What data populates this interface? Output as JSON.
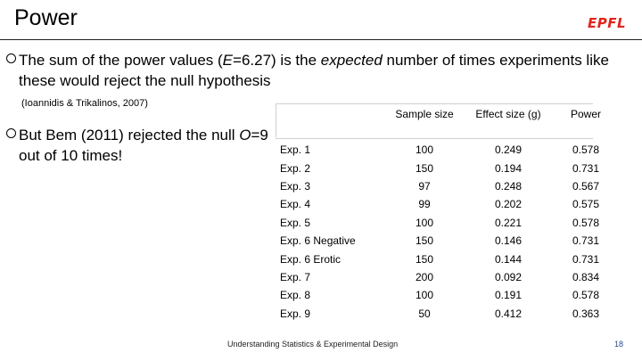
{
  "header": {
    "title": "Power",
    "logo_text": "EPFL",
    "logo_color": "#e2231a"
  },
  "bullet1": {
    "pre": "The sum of the power values (",
    "italic1": "E",
    "mid1": "=6.27) is the ",
    "italic2": "expected",
    "post": " number of times experiments like these would reject the null hypothesis"
  },
  "citation": "(Ioannidis & Trikalinos, 2007)",
  "bullet2": {
    "pre": "But Bem (2011) rejected the null ",
    "italic": "O",
    "post": "=9 out of 10 times!"
  },
  "table": {
    "headers": [
      "",
      "Sample size",
      "Effect size (g)",
      "Power"
    ],
    "rows": [
      [
        "Exp. 1",
        "100",
        "0.249",
        "0.578"
      ],
      [
        "Exp. 2",
        "150",
        "0.194",
        "0.731"
      ],
      [
        "Exp. 3",
        "97",
        "0.248",
        "0.567"
      ],
      [
        "Exp. 4",
        "99",
        "0.202",
        "0.575"
      ],
      [
        "Exp. 5",
        "100",
        "0.221",
        "0.578"
      ],
      [
        "Exp. 6 Negative",
        "150",
        "0.146",
        "0.731"
      ],
      [
        "Exp. 6 Erotic",
        "150",
        "0.144",
        "0.731"
      ],
      [
        "Exp. 7",
        "200",
        "0.092",
        "0.834"
      ],
      [
        "Exp. 8",
        "100",
        "0.191",
        "0.578"
      ],
      [
        "Exp. 9",
        "50",
        "0.412",
        "0.363"
      ]
    ]
  },
  "footer": {
    "course": "Understanding Statistics & Experimental Design",
    "page_number": "18"
  }
}
